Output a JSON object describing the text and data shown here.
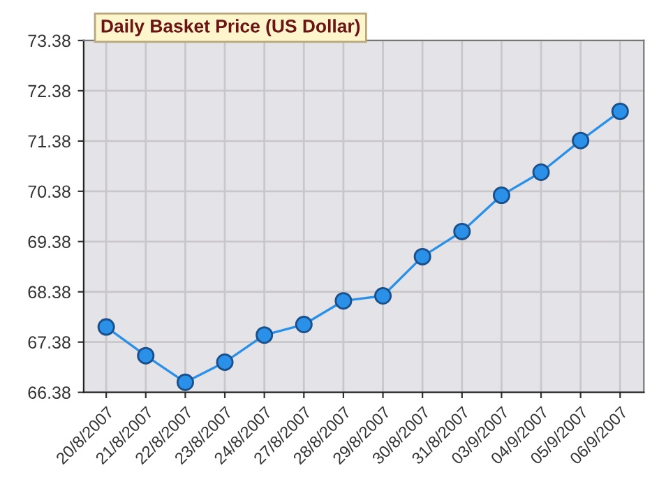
{
  "chart_data": {
    "type": "line",
    "title": "Daily Basket Price (US Dollar)",
    "categories": [
      "20/8/2007",
      "21/8/2007",
      "22/8/2007",
      "23/8/2007",
      "24/8/2007",
      "27/8/2007",
      "28/8/2007",
      "29/8/2007",
      "30/8/2007",
      "31/8/2007",
      "03/9/2007",
      "04/9/2007",
      "05/9/2007",
      "06/9/2007"
    ],
    "series": [
      {
        "color": "#2a90e8",
        "values": [
          67.68,
          67.11,
          66.58,
          66.98,
          67.52,
          67.73,
          68.2,
          68.3,
          69.08,
          69.58,
          70.3,
          70.76,
          71.39,
          71.97
        ]
      }
    ],
    "ylim": [
      66.38,
      73.38
    ],
    "yticks": [
      66.38,
      67.38,
      68.38,
      69.38,
      70.38,
      71.38,
      72.38,
      73.38
    ],
    "grid": true,
    "marker": "circle",
    "line_style": "solid",
    "legend": false
  }
}
